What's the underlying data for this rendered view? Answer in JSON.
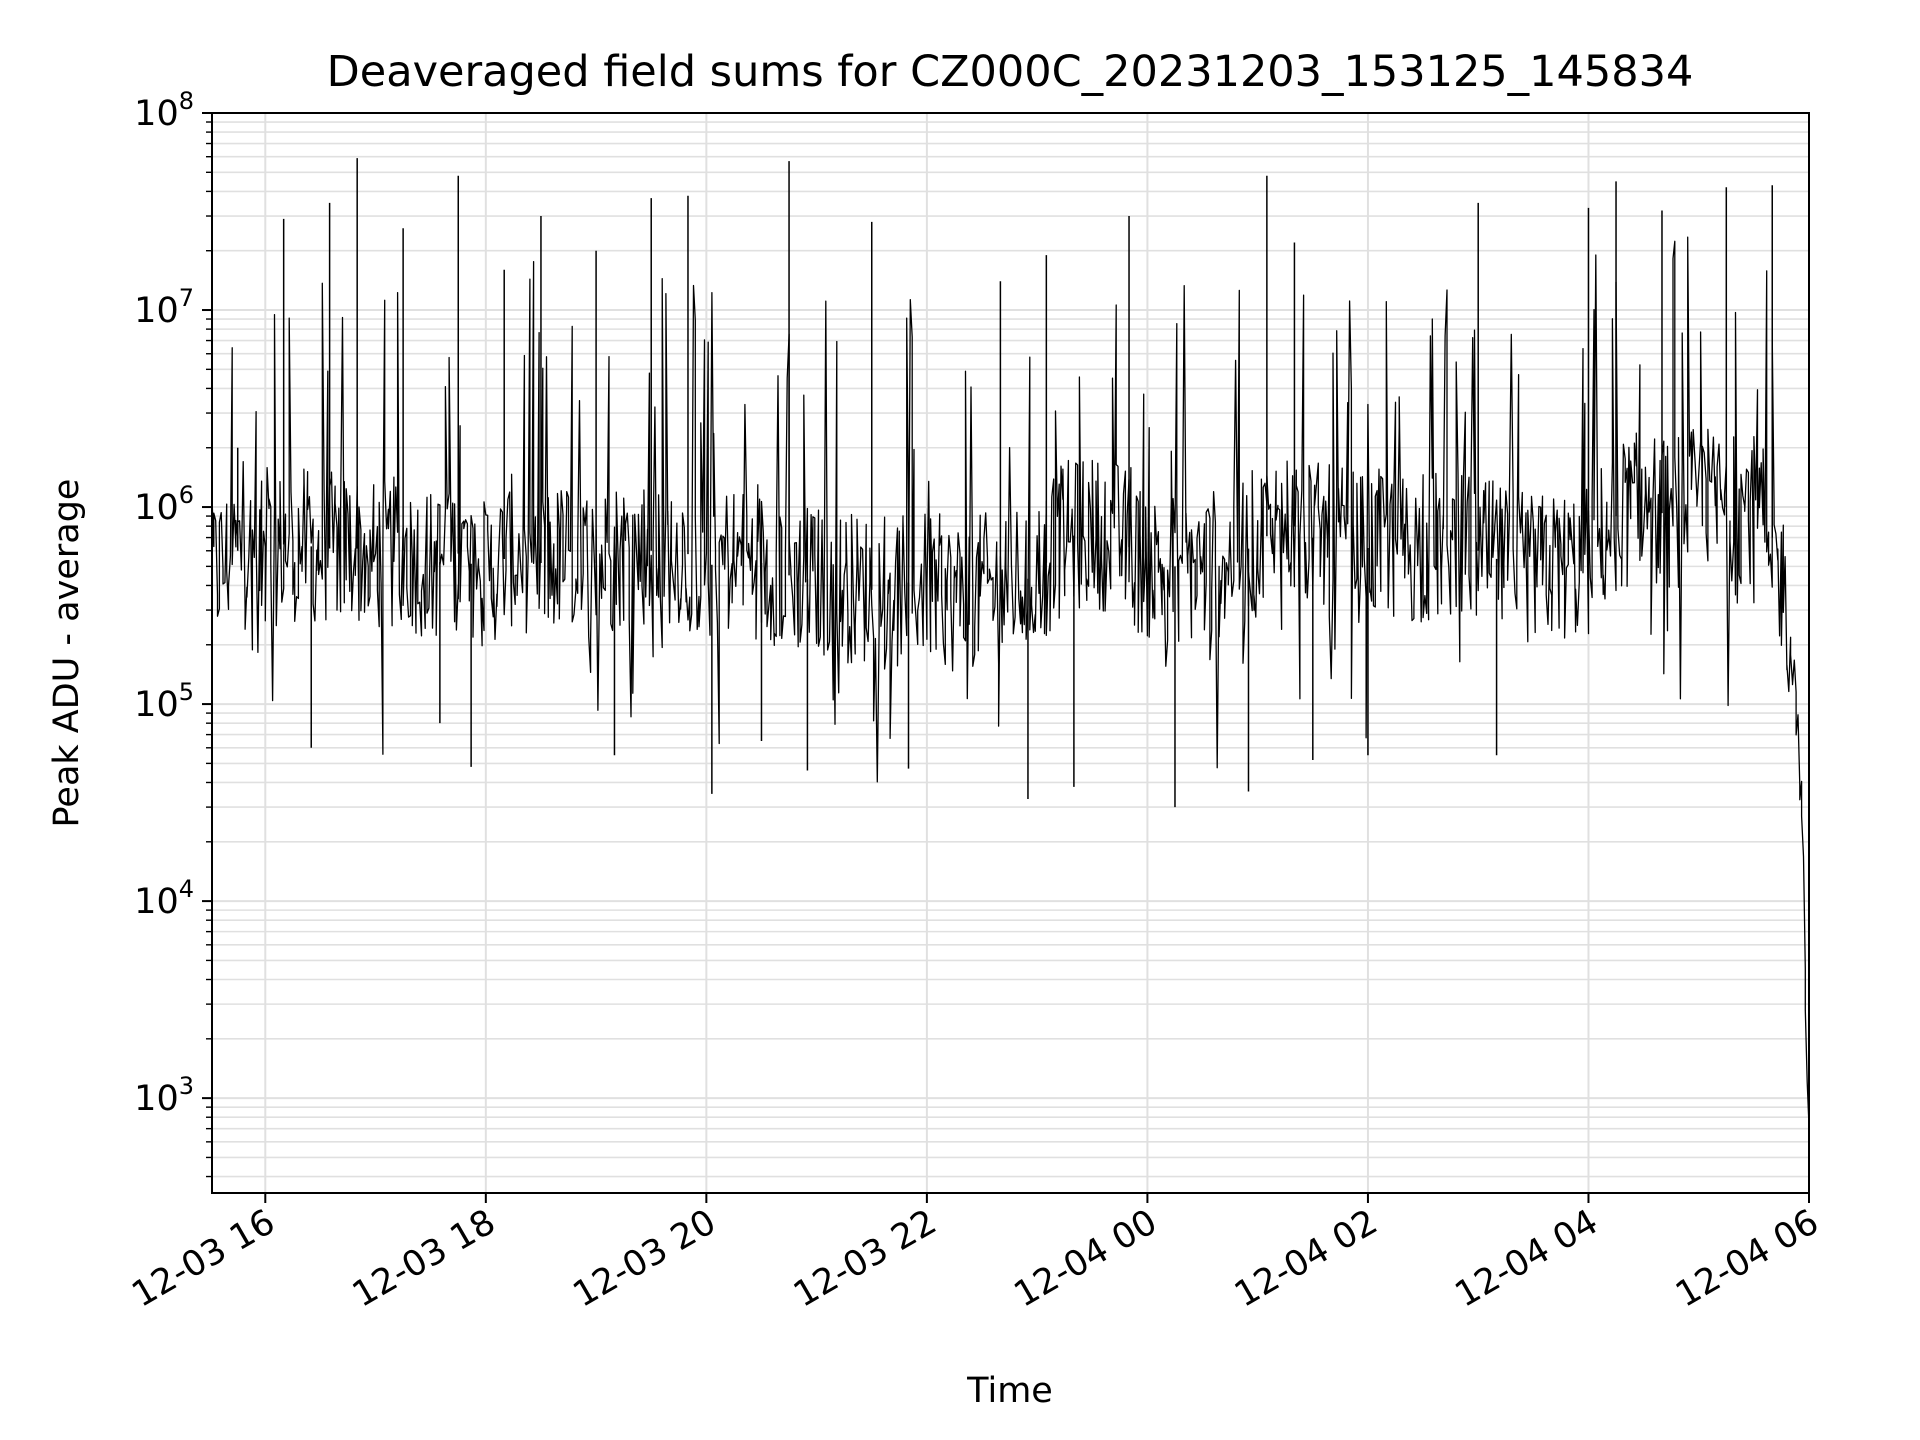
{
  "chart_data": {
    "type": "line",
    "title": "Deaveraged field sums for CZ000C_20231203_153125_145834",
    "xlabel": "Time",
    "ylabel": "Peak ADU - average",
    "yscale": "log",
    "xlim": [
      "2023-12-03 15:31",
      "2023-12-04 06:00"
    ],
    "ylim": [
      330,
      100000000
    ],
    "grid": true,
    "line_color": "#000000",
    "grid_color": "#e0e0e0",
    "x_ticks": [
      {
        "label": "12-03 16",
        "time": "2023-12-03 16:00"
      },
      {
        "label": "12-03 18",
        "time": "2023-12-03 18:00"
      },
      {
        "label": "12-03 20",
        "time": "2023-12-03 20:00"
      },
      {
        "label": "12-03 22",
        "time": "2023-12-03 22:00"
      },
      {
        "label": "12-04 00",
        "time": "2023-12-04 00:00"
      },
      {
        "label": "12-04 02",
        "time": "2023-12-04 02:00"
      },
      {
        "label": "12-04 04",
        "time": "2023-12-04 04:00"
      },
      {
        "label": "12-04 06",
        "time": "2023-12-04 06:00"
      }
    ],
    "y_ticks": [
      {
        "base": "10",
        "exp": "3",
        "value": 1000
      },
      {
        "base": "10",
        "exp": "4",
        "value": 10000
      },
      {
        "base": "10",
        "exp": "5",
        "value": 100000
      },
      {
        "base": "10",
        "exp": "6",
        "value": 1000000
      },
      {
        "base": "10",
        "exp": "7",
        "value": 10000000
      },
      {
        "base": "10",
        "exp": "8",
        "value": 100000000
      }
    ],
    "series": [
      {
        "x": [
          "2023-12-03 15:31",
          "2023-12-03 15:45",
          "2023-12-03 16:00",
          "2023-12-03 16:15",
          "2023-12-03 16:30",
          "2023-12-03 16:45",
          "2023-12-03 17:00",
          "2023-12-03 17:15",
          "2023-12-03 17:30",
          "2023-12-03 17:45",
          "2023-12-03 18:00",
          "2023-12-03 18:15",
          "2023-12-03 18:30",
          "2023-12-03 18:45",
          "2023-12-03 19:00",
          "2023-12-03 19:15",
          "2023-12-03 19:30",
          "2023-12-03 19:45",
          "2023-12-03 20:00",
          "2023-12-03 20:15",
          "2023-12-03 20:30",
          "2023-12-03 20:45",
          "2023-12-03 21:00",
          "2023-12-03 21:15",
          "2023-12-03 21:30",
          "2023-12-03 21:45",
          "2023-12-03 22:00",
          "2023-12-03 22:15",
          "2023-12-03 22:30",
          "2023-12-03 22:45",
          "2023-12-03 23:00",
          "2023-12-03 23:15",
          "2023-12-03 23:30",
          "2023-12-03 23:45",
          "2023-12-04 00:00",
          "2023-12-04 00:15",
          "2023-12-04 00:30",
          "2023-12-04 00:45",
          "2023-12-04 01:00",
          "2023-12-04 01:15",
          "2023-12-04 01:30",
          "2023-12-04 01:45",
          "2023-12-04 02:00",
          "2023-12-04 02:15",
          "2023-12-04 02:30",
          "2023-12-04 02:45",
          "2023-12-04 03:00",
          "2023-12-04 03:15",
          "2023-12-04 03:30",
          "2023-12-04 03:45",
          "2023-12-04 04:00",
          "2023-12-04 04:15",
          "2023-12-04 04:30",
          "2023-12-04 04:45",
          "2023-12-04 05:00",
          "2023-12-04 05:15",
          "2023-12-04 05:30",
          "2023-12-04 05:40",
          "2023-12-04 05:48",
          "2023-12-04 05:53",
          "2023-12-04 05:56",
          "2023-12-04 05:58",
          "2023-12-04 06:00"
        ],
        "y": [
          450000,
          600000,
          550000,
          700000,
          600000,
          650000,
          550000,
          600000,
          500000,
          580000,
          450000,
          600000,
          520000,
          560000,
          520000,
          600000,
          600000,
          620000,
          500000,
          550000,
          520000,
          450000,
          420000,
          400000,
          380000,
          420000,
          400000,
          350000,
          380000,
          400000,
          450000,
          700000,
          750000,
          700000,
          500000,
          500000,
          480000,
          550000,
          650000,
          850000,
          700000,
          650000,
          620000,
          650000,
          600000,
          650000,
          600000,
          520000,
          480000,
          500000,
          520000,
          900000,
          1000000,
          900000,
          1100000,
          1000000,
          1000000,
          700000,
          350000,
          120000,
          40000,
          8000,
          600
        ]
      }
    ],
    "spikes": [
      {
        "x": "2023-12-03 15:45",
        "y": 2000000
      },
      {
        "x": "2023-12-03 16:10",
        "y": 29000000
      },
      {
        "x": "2023-12-03 16:35",
        "y": 35000000
      },
      {
        "x": "2023-12-03 16:50",
        "y": 59000000
      },
      {
        "x": "2023-12-03 17:15",
        "y": 26000000
      },
      {
        "x": "2023-12-03 17:45",
        "y": 48000000
      },
      {
        "x": "2023-12-03 18:10",
        "y": 16000000
      },
      {
        "x": "2023-12-03 18:30",
        "y": 30000000
      },
      {
        "x": "2023-12-03 19:00",
        "y": 20000000
      },
      {
        "x": "2023-12-03 19:30",
        "y": 37000000
      },
      {
        "x": "2023-12-03 19:50",
        "y": 38000000
      },
      {
        "x": "2023-12-03 20:45",
        "y": 57000000
      },
      {
        "x": "2023-12-03 21:30",
        "y": 28000000
      },
      {
        "x": "2023-12-03 22:40",
        "y": 14000000
      },
      {
        "x": "2023-12-03 23:05",
        "y": 19000000
      },
      {
        "x": "2023-12-03 23:50",
        "y": 30000000
      },
      {
        "x": "2023-12-04 01:05",
        "y": 48000000
      },
      {
        "x": "2023-12-04 01:20",
        "y": 22000000
      },
      {
        "x": "2023-12-04 03:00",
        "y": 35000000
      },
      {
        "x": "2023-12-04 04:00",
        "y": 33000000
      },
      {
        "x": "2023-12-04 04:15",
        "y": 45000000
      },
      {
        "x": "2023-12-04 04:40",
        "y": 32000000
      },
      {
        "x": "2023-12-04 05:15",
        "y": 42000000
      },
      {
        "x": "2023-12-04 05:40",
        "y": 43000000
      }
    ],
    "dips": [
      {
        "x": "2023-12-03 16:25",
        "y": 60000
      },
      {
        "x": "2023-12-03 17:35",
        "y": 80000
      },
      {
        "x": "2023-12-03 17:52",
        "y": 48000
      },
      {
        "x": "2023-12-03 19:10",
        "y": 55000
      },
      {
        "x": "2023-12-03 20:03",
        "y": 35000
      },
      {
        "x": "2023-12-03 20:30",
        "y": 65000
      },
      {
        "x": "2023-12-03 20:55",
        "y": 46000
      },
      {
        "x": "2023-12-03 21:50",
        "y": 47000
      },
      {
        "x": "2023-12-03 22:55",
        "y": 33000
      },
      {
        "x": "2023-12-03 23:20",
        "y": 38000
      },
      {
        "x": "2023-12-04 00:15",
        "y": 30000
      },
      {
        "x": "2023-12-04 00:55",
        "y": 36000
      },
      {
        "x": "2023-12-04 01:30",
        "y": 52000
      },
      {
        "x": "2023-12-04 02:00",
        "y": 55000
      },
      {
        "x": "2023-12-04 03:10",
        "y": 55000
      }
    ]
  }
}
